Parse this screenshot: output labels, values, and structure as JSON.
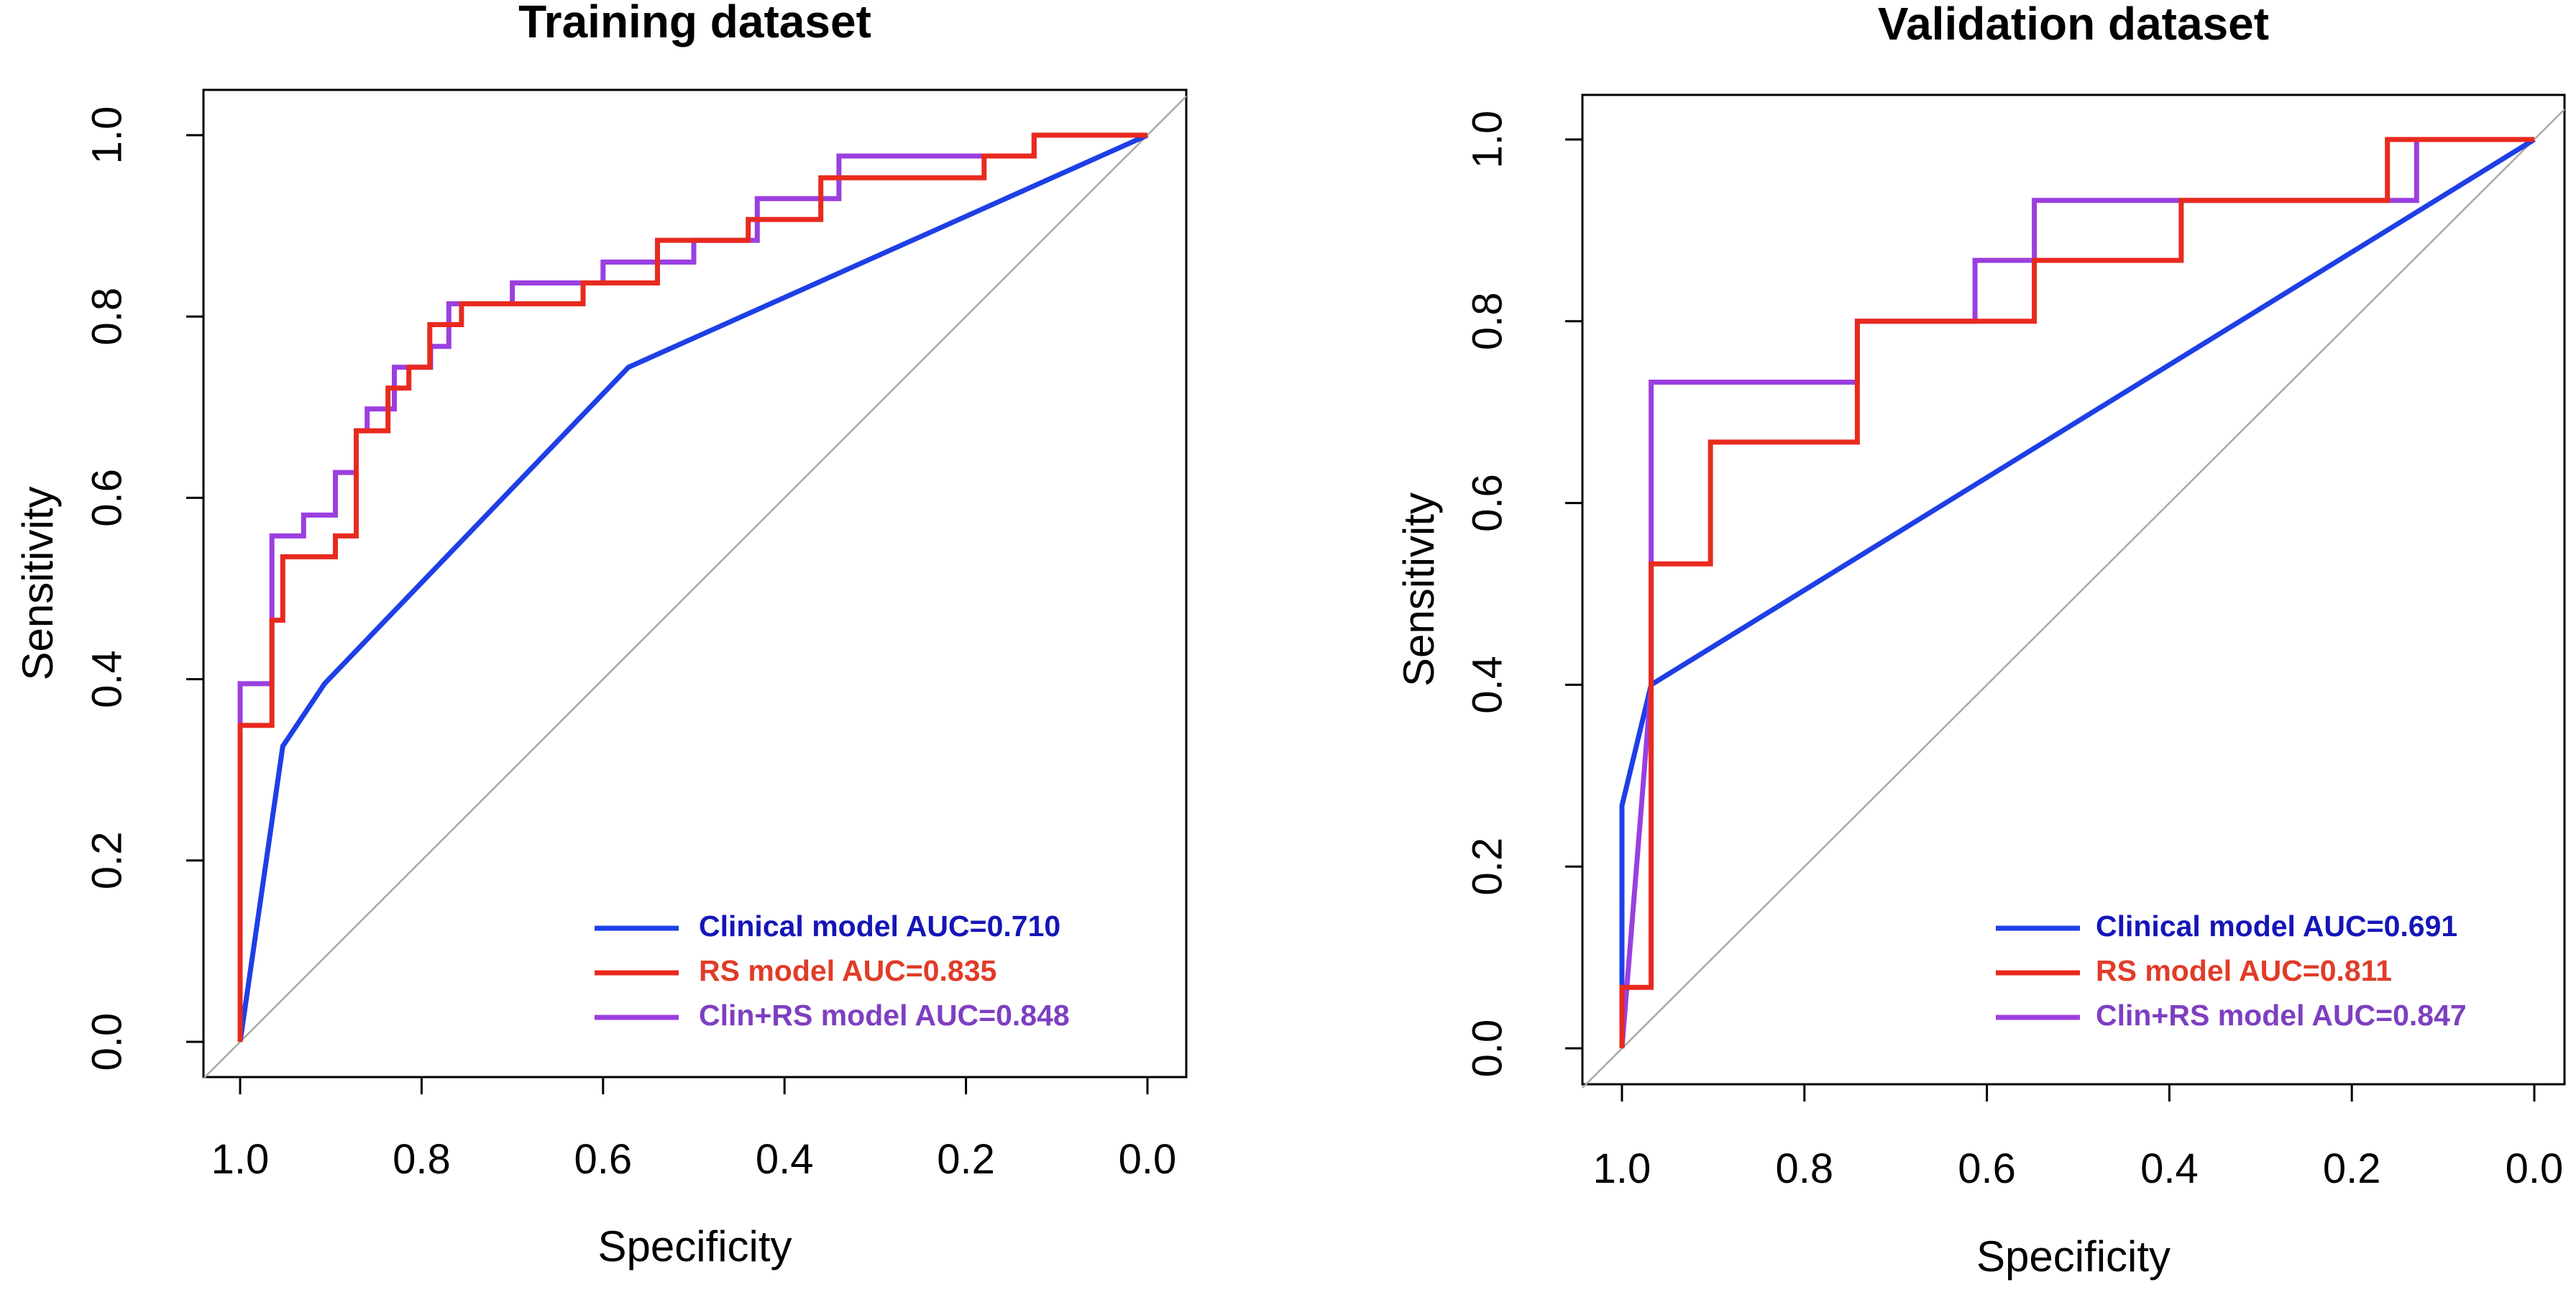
{
  "chart_data": [
    {
      "type": "line",
      "chart_kind": "ROC curve",
      "title": "Training dataset",
      "xlabel": "Specificity",
      "ylabel": "Sensitivity",
      "xlim": [
        1.0,
        0.0
      ],
      "ylim": [
        0.0,
        1.0
      ],
      "x_ticks": [
        "1.0",
        "0.8",
        "0.6",
        "0.4",
        "0.2",
        "0.0"
      ],
      "y_ticks": [
        "0.0",
        "0.2",
        "0.4",
        "0.6",
        "0.8",
        "1.0"
      ],
      "reference_line": "diagonal",
      "legend_position": "bottom-right",
      "series": [
        {
          "name": "Clinical model",
          "legend": "Clinical model AUC=0.710",
          "color": "#1E3FE6",
          "label_color": "#1515B8",
          "points": [
            [
              1.0,
              0.0
            ],
            [
              0.953,
              0.326
            ],
            [
              0.907,
              0.395
            ],
            [
              0.572,
              0.744
            ],
            [
              0.0,
              1.0
            ]
          ]
        },
        {
          "name": "RS model",
          "legend": "RS model AUC=0.835",
          "color": "#E82A1E",
          "label_color": "#E03C28",
          "points": [
            [
              1.0,
              0.0
            ],
            [
              1.0,
              0.349
            ],
            [
              0.965,
              0.349
            ],
            [
              0.965,
              0.465
            ],
            [
              0.953,
              0.465
            ],
            [
              0.953,
              0.535
            ],
            [
              0.895,
              0.535
            ],
            [
              0.895,
              0.558
            ],
            [
              0.872,
              0.558
            ],
            [
              0.872,
              0.674
            ],
            [
              0.837,
              0.674
            ],
            [
              0.837,
              0.721
            ],
            [
              0.814,
              0.721
            ],
            [
              0.814,
              0.744
            ],
            [
              0.791,
              0.744
            ],
            [
              0.791,
              0.791
            ],
            [
              0.756,
              0.791
            ],
            [
              0.756,
              0.814
            ],
            [
              0.622,
              0.814
            ],
            [
              0.622,
              0.837
            ],
            [
              0.54,
              0.837
            ],
            [
              0.54,
              0.884
            ],
            [
              0.44,
              0.884
            ],
            [
              0.44,
              0.907
            ],
            [
              0.36,
              0.907
            ],
            [
              0.36,
              0.953
            ],
            [
              0.18,
              0.953
            ],
            [
              0.18,
              0.977
            ],
            [
              0.125,
              0.977
            ],
            [
              0.125,
              1.0
            ],
            [
              0.0,
              1.0
            ]
          ]
        },
        {
          "name": "Clin+RS model",
          "legend": "Clin+RS model AUC=0.848",
          "color": "#9B3FE0",
          "label_color": "#7E3FC0",
          "points": [
            [
              1.0,
              0.0
            ],
            [
              1.0,
              0.395
            ],
            [
              0.965,
              0.395
            ],
            [
              0.965,
              0.558
            ],
            [
              0.93,
              0.558
            ],
            [
              0.93,
              0.581
            ],
            [
              0.895,
              0.581
            ],
            [
              0.895,
              0.628
            ],
            [
              0.872,
              0.628
            ],
            [
              0.872,
              0.674
            ],
            [
              0.86,
              0.674
            ],
            [
              0.86,
              0.698
            ],
            [
              0.83,
              0.698
            ],
            [
              0.83,
              0.744
            ],
            [
              0.79,
              0.744
            ],
            [
              0.79,
              0.767
            ],
            [
              0.77,
              0.767
            ],
            [
              0.77,
              0.814
            ],
            [
              0.7,
              0.814
            ],
            [
              0.7,
              0.837
            ],
            [
              0.6,
              0.837
            ],
            [
              0.6,
              0.86
            ],
            [
              0.5,
              0.86
            ],
            [
              0.5,
              0.884
            ],
            [
              0.43,
              0.884
            ],
            [
              0.43,
              0.93
            ],
            [
              0.34,
              0.93
            ],
            [
              0.34,
              0.977
            ],
            [
              0.125,
              0.977
            ],
            [
              0.125,
              1.0
            ],
            [
              0.0,
              1.0
            ]
          ]
        }
      ]
    },
    {
      "type": "line",
      "chart_kind": "ROC curve",
      "title": "Validation dataset",
      "xlabel": "Specificity",
      "ylabel": "Sensitivity",
      "xlim": [
        1.0,
        0.0
      ],
      "ylim": [
        0.0,
        1.0
      ],
      "x_ticks": [
        "1.0",
        "0.8",
        "0.6",
        "0.4",
        "0.2",
        "0.0"
      ],
      "y_ticks": [
        "0.0",
        "0.2",
        "0.4",
        "0.6",
        "0.8",
        "1.0"
      ],
      "reference_line": "diagonal",
      "legend_position": "bottom-right",
      "series": [
        {
          "name": "Clinical model",
          "legend": "Clinical model AUC=0.691",
          "color": "#1E3FE6",
          "label_color": "#1515B8",
          "points": [
            [
              1.0,
              0.0
            ],
            [
              1.0,
              0.267
            ],
            [
              0.968,
              0.4
            ],
            [
              0.0,
              1.0
            ]
          ]
        },
        {
          "name": "RS model",
          "legend": "RS model AUC=0.811",
          "color": "#E82A1E",
          "label_color": "#E03C28",
          "points": [
            [
              1.0,
              0.0
            ],
            [
              1.0,
              0.067
            ],
            [
              0.968,
              0.067
            ],
            [
              0.968,
              0.533
            ],
            [
              0.903,
              0.533
            ],
            [
              0.903,
              0.667
            ],
            [
              0.742,
              0.667
            ],
            [
              0.742,
              0.8
            ],
            [
              0.548,
              0.8
            ],
            [
              0.548,
              0.867
            ],
            [
              0.387,
              0.867
            ],
            [
              0.387,
              0.933
            ],
            [
              0.161,
              0.933
            ],
            [
              0.161,
              1.0
            ],
            [
              0.0,
              1.0
            ]
          ]
        },
        {
          "name": "Clin+RS model",
          "legend": "Clin+RS model AUC=0.847",
          "color": "#9B3FE0",
          "label_color": "#7E3FC0",
          "points": [
            [
              1.0,
              0.0
            ],
            [
              0.968,
              0.4
            ],
            [
              0.968,
              0.733
            ],
            [
              0.742,
              0.733
            ],
            [
              0.742,
              0.8
            ],
            [
              0.613,
              0.8
            ],
            [
              0.613,
              0.867
            ],
            [
              0.548,
              0.867
            ],
            [
              0.548,
              0.933
            ],
            [
              0.129,
              0.933
            ],
            [
              0.129,
              1.0
            ],
            [
              0.0,
              1.0
            ]
          ]
        }
      ]
    }
  ]
}
